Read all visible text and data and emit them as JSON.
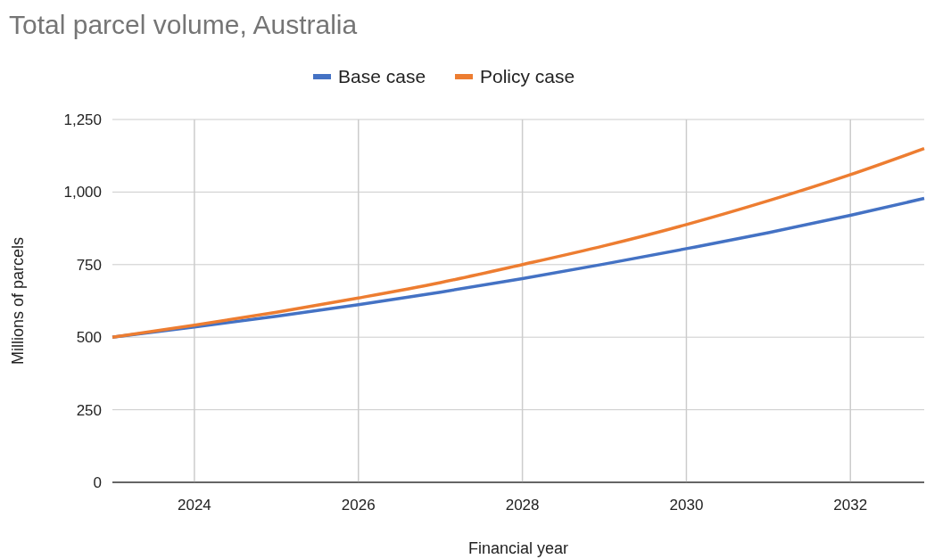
{
  "chart_data": {
    "type": "line",
    "title": "Total parcel volume, Australia",
    "xlabel": "Financial year",
    "ylabel": "Millions of parcels",
    "x": [
      2023,
      2024,
      2025,
      2026,
      2027,
      2028,
      2029,
      2030,
      2031,
      2032,
      2032.9
    ],
    "series": [
      {
        "name": "Base case",
        "color": "#4472c4",
        "values": [
          500,
          535,
          572,
          612,
          655,
          702,
          752,
          805,
          860,
          920,
          978
        ]
      },
      {
        "name": "Policy case",
        "color": "#ed7d31",
        "values": [
          500,
          541,
          586,
          635,
          688,
          750,
          815,
          888,
          970,
          1060,
          1150
        ]
      }
    ],
    "xlim": [
      2023,
      2032.9
    ],
    "xticks": [
      2024,
      2026,
      2028,
      2030,
      2032
    ],
    "ylim": [
      0,
      1250
    ],
    "yticks": [
      {
        "value": 0,
        "label": "0"
      },
      {
        "value": 250,
        "label": "250"
      },
      {
        "value": 500,
        "label": "500"
      },
      {
        "value": 750,
        "label": "750"
      },
      {
        "value": 1000,
        "label": "1,000"
      },
      {
        "value": 1250,
        "label": "1,250"
      }
    ],
    "grid": true,
    "legend": "top",
    "marker": "none",
    "line_style": "solid"
  }
}
